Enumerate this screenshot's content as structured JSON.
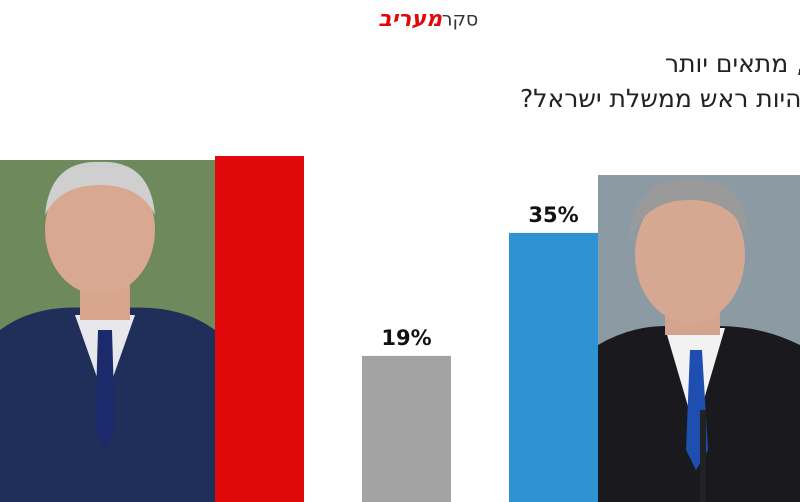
{
  "chart_data": {
    "type": "bar",
    "brand": "מעריב",
    "brand_label": "סקר",
    "title_lines": [
      "מי מהשניים, בנימין נתניהו או בני גנץ, מתאים יותר",
      "להיות ראש ממשלת ישראל?"
    ],
    "values": [
      45,
      19,
      35
    ],
    "value_labels": [
      null,
      "19%",
      "35%"
    ],
    "colors": [
      "#e1080c",
      "#a3a3a3",
      "#2f93d3"
    ]
  }
}
